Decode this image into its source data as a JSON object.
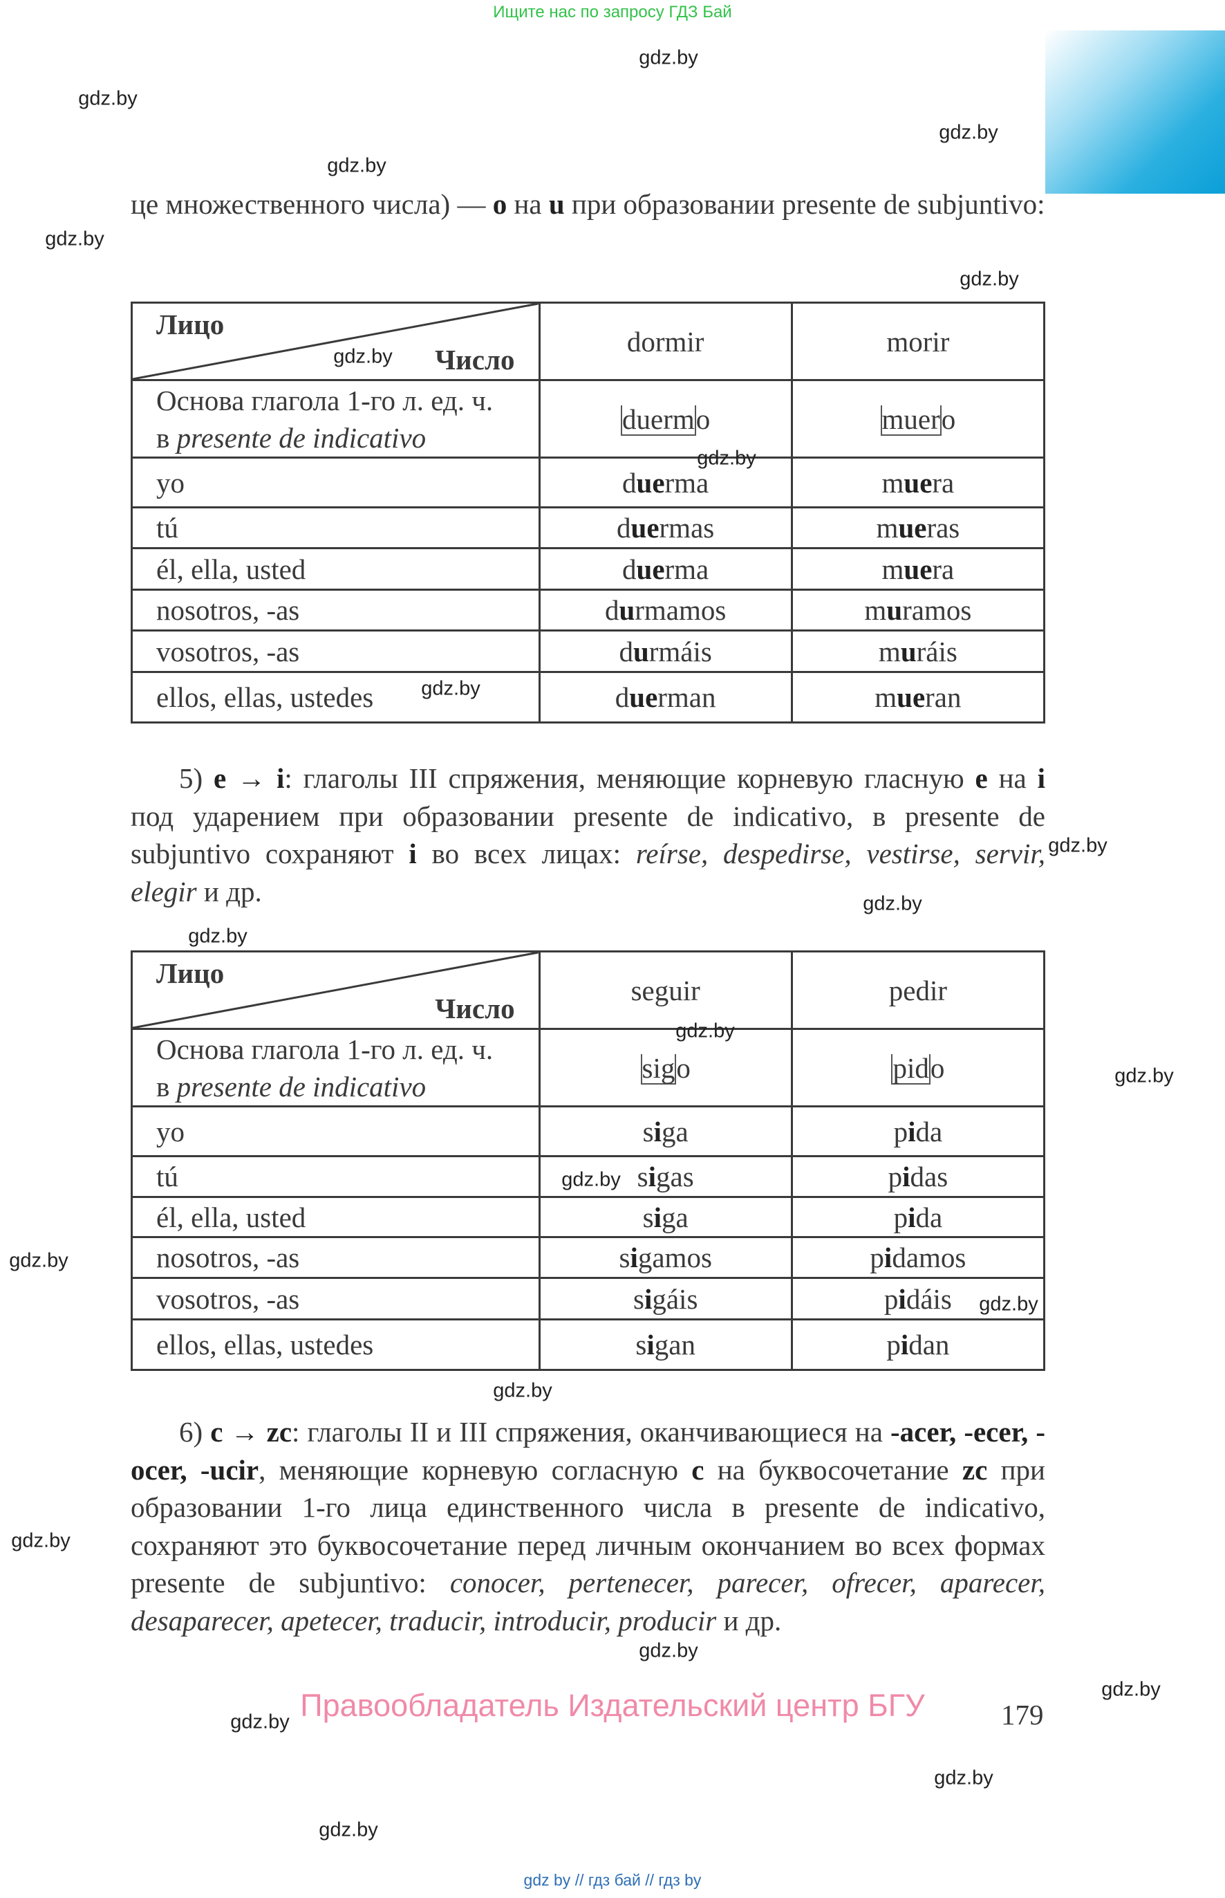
{
  "banner": "Ищите нас по запросу ГДЗ Бай",
  "accent_color": "#0b9fd8",
  "paragraphs": {
    "intro": [
      {
        "t": "це множественного числа) — "
      },
      {
        "t": "o",
        "s": "b"
      },
      {
        "t": " на "
      },
      {
        "t": "u",
        "s": "b"
      },
      {
        "t": " при образовании presente de subjuntivo:"
      }
    ],
    "p5": [
      {
        "t": "5) "
      },
      {
        "t": "e → i",
        "s": "b"
      },
      {
        "t": ": глаголы III спряжения, меняющие корневую гласную "
      },
      {
        "t": "e",
        "s": "b"
      },
      {
        "t": " на "
      },
      {
        "t": "i",
        "s": "b"
      },
      {
        "t": " под ударением при образовании presente de indicativo, в presente de subjuntivo сохраняют "
      },
      {
        "t": "i",
        "s": "b"
      },
      {
        "t": " во всех лицах: "
      },
      {
        "t": "reírse, despedirse, vestirse, servir, elegir",
        "s": "i"
      },
      {
        "t": " и др."
      }
    ],
    "p6": [
      {
        "t": "6) "
      },
      {
        "t": "c → zc",
        "s": "b"
      },
      {
        "t": ": глаголы II и III спряжения, оканчивающиеся на "
      },
      {
        "t": "-acer, -ecer, -ocer, -ucir",
        "s": "b"
      },
      {
        "t": ", меняющие корневую согласную "
      },
      {
        "t": "c",
        "s": "b"
      },
      {
        "t": " на буквосочетание "
      },
      {
        "t": "zc",
        "s": "b"
      },
      {
        "t": " при образовании 1-го лица единственного числа в presente de indicativo, сохраняют это буквосочетание перед личным окончанием во всех формах presente de subjuntivo: "
      },
      {
        "t": "conocer, pertenecer, parecer, ofrecer, aparecer, desaparecer, apetecer, traducir, introducir, producir",
        "s": "i"
      },
      {
        "t": " и др."
      }
    ]
  },
  "tables": [
    {
      "header": {
        "person": "Лицо",
        "number": "Число",
        "verbs": [
          "dormir",
          "morir"
        ]
      },
      "stem_row": {
        "label": "Основа глагола 1-го л. ед. ч.",
        "label2_prefix": "в ",
        "label2_italic": "presente de indicativo",
        "stems": [
          {
            "stem": "duerm",
            "end": "o"
          },
          {
            "stem": "muer",
            "end": "o"
          }
        ]
      },
      "rows": [
        {
          "person": "yo",
          "forms": [
            {
              "pre": "d",
              "bold": "ue",
              "post": "rma"
            },
            {
              "pre": "m",
              "bold": "ue",
              "post": "ra"
            }
          ]
        },
        {
          "person": "tú",
          "forms": [
            {
              "pre": "d",
              "bold": "ue",
              "post": "rmas"
            },
            {
              "pre": "m",
              "bold": "ue",
              "post": "ras"
            }
          ]
        },
        {
          "person": "él, ella, usted",
          "forms": [
            {
              "pre": "d",
              "bold": "ue",
              "post": "rma"
            },
            {
              "pre": "m",
              "bold": "ue",
              "post": "ra"
            }
          ]
        },
        {
          "person": "nosotros, -as",
          "forms": [
            {
              "pre": "d",
              "bold": "u",
              "post": "rmamos"
            },
            {
              "pre": "m",
              "bold": "u",
              "post": "ramos"
            }
          ]
        },
        {
          "person": "vosotros, -as",
          "forms": [
            {
              "pre": "d",
              "bold": "u",
              "post": "rmáis"
            },
            {
              "pre": "m",
              "bold": "u",
              "post": "ráis"
            }
          ]
        },
        {
          "person": "ellos, ellas, ustedes",
          "forms": [
            {
              "pre": "d",
              "bold": "ue",
              "post": "rman"
            },
            {
              "pre": "m",
              "bold": "ue",
              "post": "ran"
            }
          ]
        }
      ]
    },
    {
      "header": {
        "person": "Лицо",
        "number": "Число",
        "verbs": [
          "seguir",
          "pedir"
        ]
      },
      "stem_row": {
        "label": "Основа глагола 1-го л. ед. ч.",
        "label2_prefix": "в ",
        "label2_italic": "presente de indicativo",
        "stems": [
          {
            "stem": "sig",
            "end": "o"
          },
          {
            "stem": "pid",
            "end": "o"
          }
        ]
      },
      "rows": [
        {
          "person": "yo",
          "forms": [
            {
              "pre": "s",
              "bold": "i",
              "post": "ga"
            },
            {
              "pre": "p",
              "bold": "i",
              "post": "da"
            }
          ]
        },
        {
          "person": "tú",
          "forms": [
            {
              "pre": "s",
              "bold": "i",
              "post": "gas"
            },
            {
              "pre": "p",
              "bold": "i",
              "post": "das"
            }
          ]
        },
        {
          "person": "él, ella, usted",
          "forms": [
            {
              "pre": "s",
              "bold": "i",
              "post": "ga"
            },
            {
              "pre": "p",
              "bold": "i",
              "post": "da"
            }
          ]
        },
        {
          "person": "nosotros, -as",
          "forms": [
            {
              "pre": "s",
              "bold": "i",
              "post": "gamos"
            },
            {
              "pre": "p",
              "bold": "i",
              "post": "damos"
            }
          ]
        },
        {
          "person": "vosotros, -as",
          "forms": [
            {
              "pre": "s",
              "bold": "i",
              "post": "gáis"
            },
            {
              "pre": "p",
              "bold": "i",
              "post": "dáis"
            }
          ]
        },
        {
          "person": "ellos, ellas, ustedes",
          "forms": [
            {
              "pre": "s",
              "bold": "i",
              "post": "gan"
            },
            {
              "pre": "p",
              "bold": "i",
              "post": "dan"
            }
          ]
        }
      ]
    }
  ],
  "watermark": "gdz.by",
  "owner": "Правообладатель Издательский центр БГУ",
  "page_number": "179",
  "bottom_links": "gdz by  //  гдз бай  //  гдз by"
}
